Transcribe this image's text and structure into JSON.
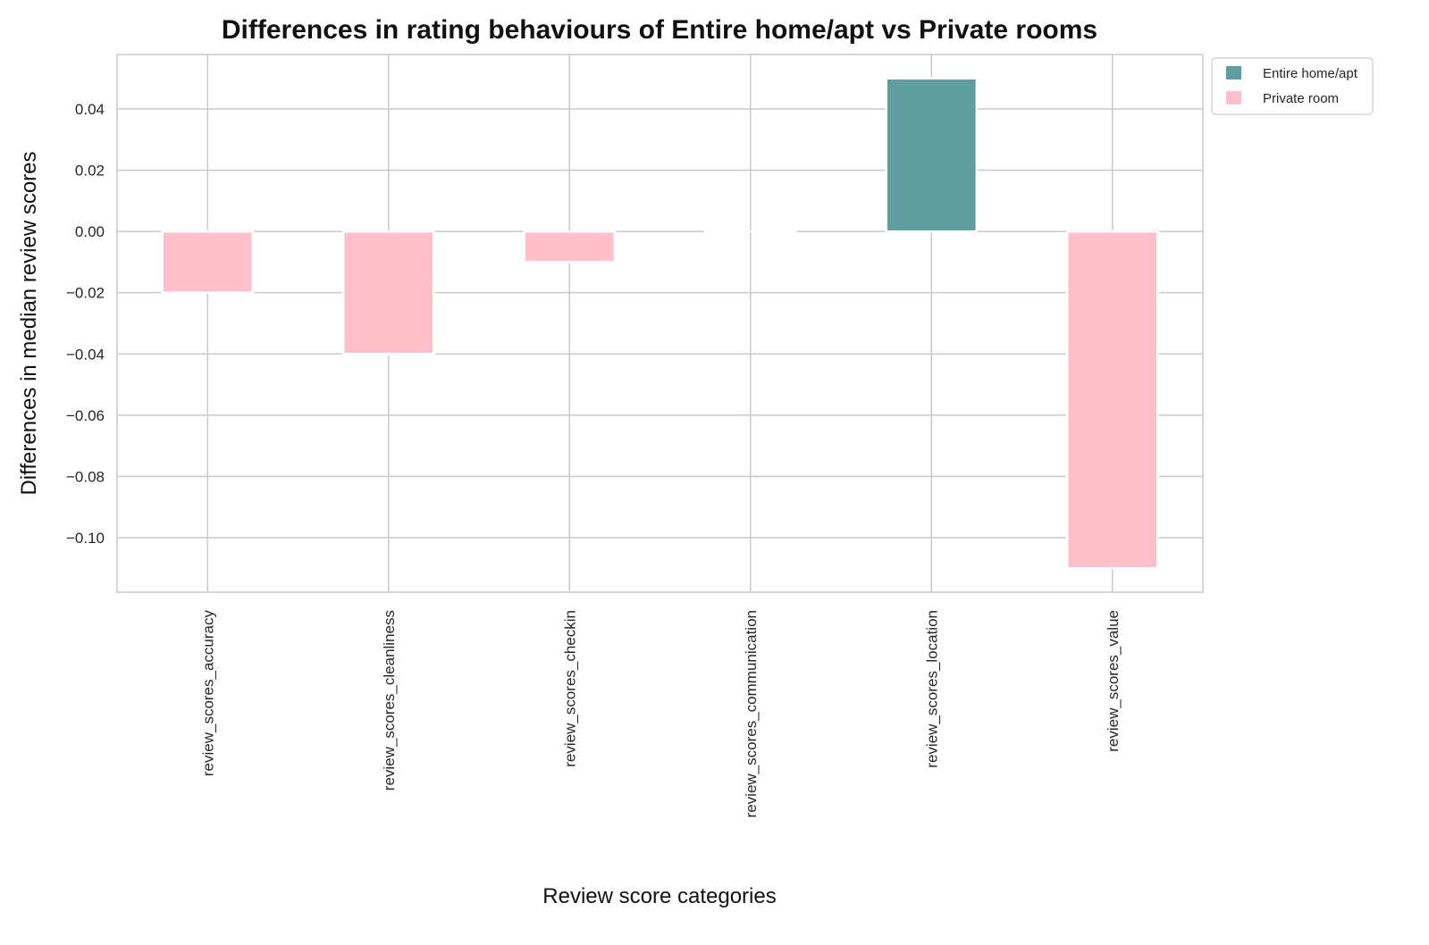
{
  "chart_data": {
    "type": "bar",
    "title": "Differences in rating behaviours of Entire home/apt vs Private rooms",
    "xlabel": "Review score categories",
    "ylabel": "Differences in median review scores",
    "categories": [
      "review_scores_accuracy",
      "review_scores_cleanliness",
      "review_scores_checkin",
      "review_scores_communication",
      "review_scores_location",
      "review_scores_value"
    ],
    "values": [
      -0.02,
      -0.04,
      -0.01,
      0.0,
      0.05,
      -0.11
    ],
    "ylim": [
      -0.1178,
      0.0578
    ],
    "yticks": [
      0.04,
      0.02,
      0.0,
      -0.02,
      -0.04,
      -0.06,
      -0.08,
      -0.1
    ],
    "ytick_labels": [
      "0.04",
      "0.02",
      "0.00",
      "−0.02",
      "−0.04",
      "−0.06",
      "−0.08",
      "−0.10"
    ],
    "grid": true,
    "legend": {
      "placement": "outside-top-right",
      "entries": [
        {
          "name": "Entire home/apt",
          "color": "#5f9ea0"
        },
        {
          "name": "Private room",
          "color": "#ffc0cb"
        }
      ]
    },
    "colors": {
      "positive": "#5f9ea0",
      "negative": "#ffc0cb",
      "grid": "#cccccc",
      "axes": "#cccccc"
    }
  }
}
